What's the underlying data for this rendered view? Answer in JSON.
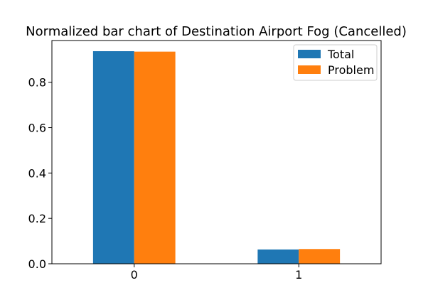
{
  "chart_data": {
    "type": "bar",
    "title": "Normalized bar chart of Destination Airport Fog (Cancelled)",
    "xlabel": "",
    "ylabel": "",
    "categories": [
      "0",
      "1"
    ],
    "series": [
      {
        "name": "Total",
        "values": [
          0.937,
          0.063
        ],
        "color": "#1f77b4"
      },
      {
        "name": "Problem",
        "values": [
          0.935,
          0.065
        ],
        "color": "#ff7f0e"
      }
    ],
    "ylim": [
      0,
      0.984
    ],
    "yticks": [
      0.0,
      0.2,
      0.4,
      0.6,
      0.8
    ],
    "ytick_labels": [
      "0.0",
      "0.2",
      "0.4",
      "0.6",
      "0.8"
    ],
    "grid": false,
    "legend_position": "top-right"
  }
}
